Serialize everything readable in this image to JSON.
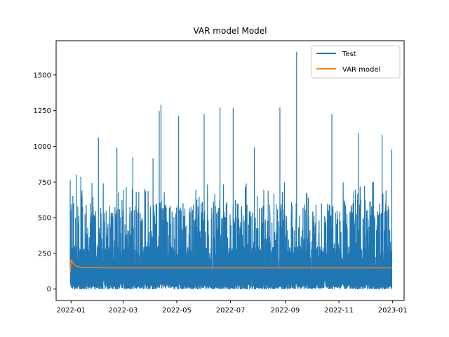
{
  "chart_data": {
    "type": "line",
    "title": "VAR model Model",
    "xlabel": "",
    "ylabel": "",
    "x_range": [
      "2021-12-15",
      "2023-01-14"
    ],
    "ylim": [
      -80,
      1740
    ],
    "x_ticks": [
      "2022-01",
      "2022-03",
      "2022-05",
      "2022-07",
      "2022-09",
      "2022-11",
      "2023-01"
    ],
    "x_tick_dates": [
      "2022-01-01",
      "2022-03-01",
      "2022-05-01",
      "2022-07-01",
      "2022-09-01",
      "2022-11-01",
      "2023-01-01"
    ],
    "y_ticks": [
      0,
      250,
      500,
      750,
      1000,
      1250,
      1500
    ],
    "legend_position": "top-right",
    "grid": false,
    "series": [
      {
        "name": "Test",
        "color": "#1f77b4",
        "style": "dense hourly line, roughly 0 to 600 with spikes",
        "date_range": [
          "2021-12-31",
          "2022-12-31"
        ],
        "typical_min": 0,
        "typical_max": 600,
        "peaks": [
          {
            "date": "2021-12-31",
            "value": 760
          },
          {
            "date": "2022-01-03",
            "value": 650
          },
          {
            "date": "2022-01-07",
            "value": 800
          },
          {
            "date": "2022-01-12",
            "value": 785
          },
          {
            "date": "2022-02-01",
            "value": 1060
          },
          {
            "date": "2022-02-22",
            "value": 990
          },
          {
            "date": "2022-03-12",
            "value": 920
          },
          {
            "date": "2022-04-04",
            "value": 915
          },
          {
            "date": "2022-04-11",
            "value": 1245
          },
          {
            "date": "2022-04-13",
            "value": 1290
          },
          {
            "date": "2022-05-03",
            "value": 1210
          },
          {
            "date": "2022-06-01",
            "value": 1225
          },
          {
            "date": "2022-06-19",
            "value": 1270
          },
          {
            "date": "2022-07-04",
            "value": 1265
          },
          {
            "date": "2022-07-28",
            "value": 990
          },
          {
            "date": "2022-08-26",
            "value": 1270
          },
          {
            "date": "2022-09-14",
            "value": 1660
          },
          {
            "date": "2022-10-24",
            "value": 1225
          },
          {
            "date": "2022-11-23",
            "value": 1090
          },
          {
            "date": "2022-12-20",
            "value": 1080
          },
          {
            "date": "2022-12-31",
            "value": 975
          }
        ]
      },
      {
        "name": "VAR model",
        "color": "#ff7f0e",
        "x": [
          "2021-12-31",
          "2022-01-01",
          "2022-01-02",
          "2022-01-04",
          "2022-01-07",
          "2022-01-12",
          "2022-01-25",
          "2022-02-15",
          "2022-12-31"
        ],
        "values": [
          110,
          205,
          195,
          172,
          160,
          153,
          150,
          149,
          149
        ]
      }
    ]
  }
}
